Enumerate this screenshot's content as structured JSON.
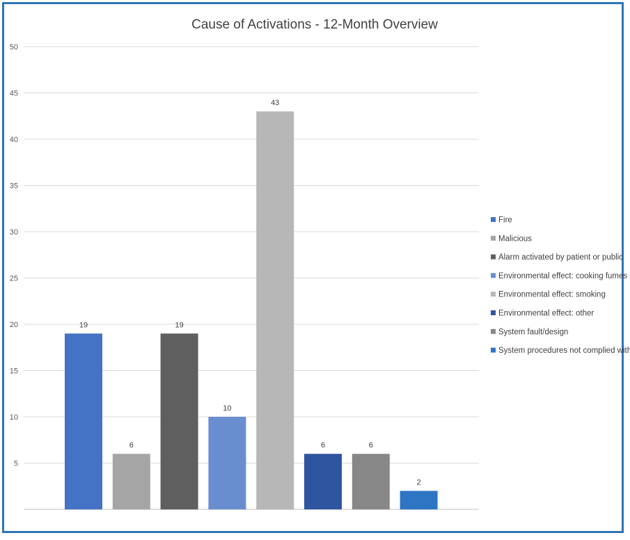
{
  "chart_data": {
    "type": "bar",
    "title": "Cause of Activations - 12-Month Overview",
    "xlabel": "",
    "ylabel": "",
    "ylim": [
      0,
      50
    ],
    "yticks": [
      5,
      10,
      15,
      20,
      25,
      30,
      35,
      40,
      45,
      50
    ],
    "grid": true,
    "legend_position": "right",
    "series": [
      {
        "name": "Fire",
        "value": 19,
        "color": "#4472c4"
      },
      {
        "name": "Malicious",
        "value": 6,
        "color": "#a5a5a5"
      },
      {
        "name": "Alarm activated by patient or public",
        "value": 19,
        "color": "#5f5f5f"
      },
      {
        "name": "Environmental effect: cooking fumes",
        "value": 10,
        "color": "#698ed0"
      },
      {
        "name": "Environmental effect: smoking",
        "value": 43,
        "color": "#b7b7b7"
      },
      {
        "name": "Environmental effect: other",
        "value": 6,
        "color": "#2f55a0"
      },
      {
        "name": "System fault/design",
        "value": 6,
        "color": "#878787"
      },
      {
        "name": "System procedures not complied with",
        "value": 2,
        "color": "#2e75c4"
      }
    ]
  }
}
